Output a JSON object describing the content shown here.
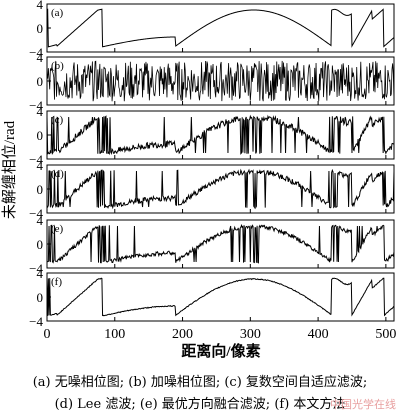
{
  "figure": {
    "ylabel": "未解缠相位/rad",
    "xlabel": "距离向/像素",
    "caption_line1": "(a) 无噪相位图; (b) 加噪相位图; (c) 复数空间自适应滤波;",
    "caption_line2": "(d) Lee 滤波; (e) 最优方向融合滤波; (f) 本文方法",
    "watermark": "中国光学在线"
  },
  "chart_data": [
    {
      "type": "line",
      "panel_label": "(a)",
      "xlim": [
        0,
        512
      ],
      "ylim": [
        -4,
        4
      ],
      "yticks": [
        -4,
        0,
        4
      ],
      "xticks": [
        0,
        100,
        200,
        300,
        400,
        500
      ],
      "noise": 0,
      "spikes": false
    },
    {
      "type": "line",
      "panel_label": "(b)",
      "xlim": [
        0,
        512
      ],
      "ylim": [
        -4,
        4
      ],
      "yticks": [
        -4,
        0,
        4
      ],
      "xticks": [
        0,
        100,
        200,
        300,
        400,
        500
      ],
      "noise": 1,
      "spikes": false
    },
    {
      "type": "line",
      "panel_label": "(c)",
      "xlim": [
        0,
        512
      ],
      "ylim": [
        -4,
        4
      ],
      "yticks": [
        -4,
        0,
        4
      ],
      "xticks": [
        0,
        100,
        200,
        300,
        400,
        500
      ],
      "noise": 0.35,
      "spikes": true
    },
    {
      "type": "line",
      "panel_label": "(d)",
      "xlim": [
        0,
        512
      ],
      "ylim": [
        -4,
        4
      ],
      "yticks": [
        -4,
        0,
        4
      ],
      "xticks": [
        0,
        100,
        200,
        300,
        400,
        500
      ],
      "noise": 0.3,
      "spikes": true
    },
    {
      "type": "line",
      "panel_label": "(e)",
      "xlim": [
        0,
        512
      ],
      "ylim": [
        -4,
        4
      ],
      "yticks": [
        -4,
        0,
        4
      ],
      "xticks": [
        0,
        100,
        200,
        300,
        400,
        500
      ],
      "noise": 0.22,
      "spikes": true
    },
    {
      "type": "line",
      "panel_label": "(f)",
      "xlim": [
        0,
        512
      ],
      "ylim": [
        -4,
        4
      ],
      "yticks": [
        -4,
        0,
        4
      ],
      "xticks": [
        0,
        100,
        200,
        300,
        400,
        500
      ],
      "noise": 0.05,
      "spikes": false
    }
  ]
}
